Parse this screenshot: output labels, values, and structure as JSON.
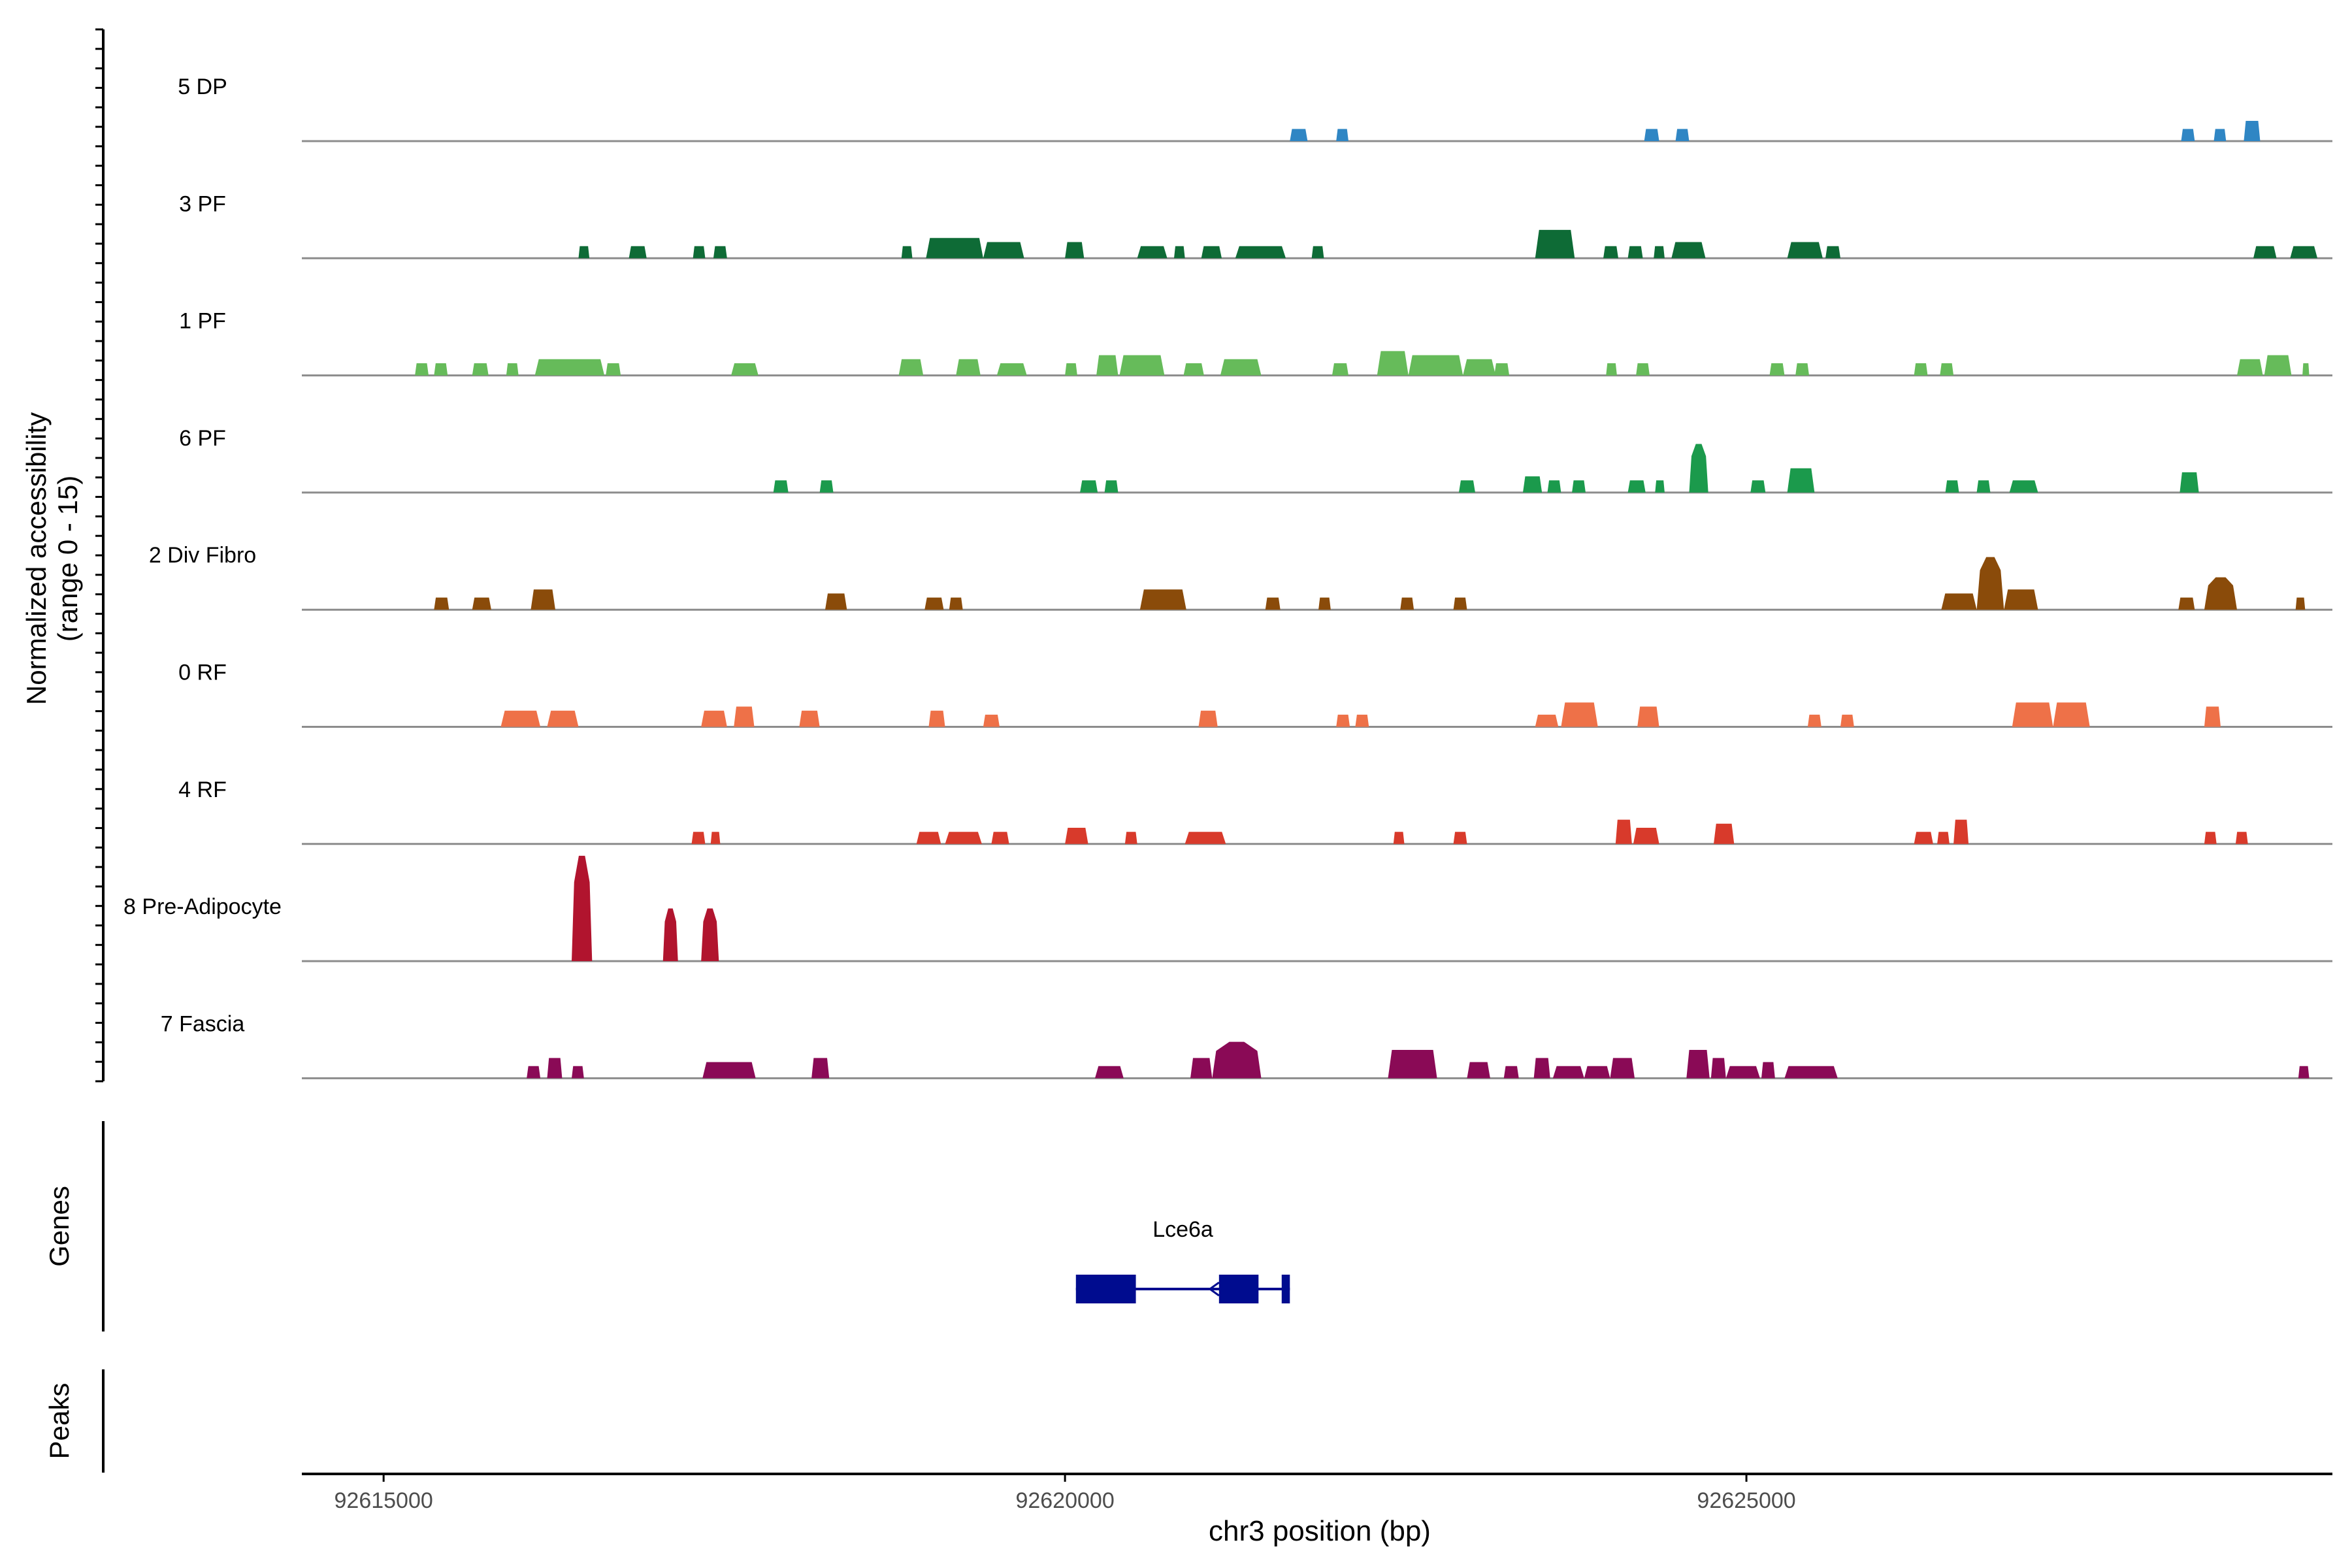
{
  "chart_data": {
    "type": "area",
    "ylabel_line1": "Normalized accessibility",
    "ylabel_line2": "(range 0 - 15)",
    "xlabel": "chr3 position (bp)",
    "xlim": [
      92614400,
      92629300
    ],
    "ylim": [
      0,
      15
    ],
    "x_ticks": [
      92615000,
      92620000,
      92625000
    ],
    "x_tick_labels": [
      "92615000",
      "92620000",
      "92625000"
    ],
    "tracks": [
      {
        "name": "5 DP",
        "color": "#2f86c4",
        "peaks": [
          [
            92621650,
            92621780,
            3
          ],
          [
            92621990,
            92622080,
            3
          ],
          [
            92624250,
            92624360,
            3
          ],
          [
            92624480,
            92624580,
            3
          ],
          [
            92628190,
            92628290,
            3
          ],
          [
            92628430,
            92628520,
            3
          ],
          [
            92628650,
            92628770,
            5
          ]
        ]
      },
      {
        "name": "3 PF",
        "color": "#0e6b36",
        "peaks": [
          [
            92616430,
            92616510,
            3
          ],
          [
            92616800,
            92616930,
            3
          ],
          [
            92617270,
            92617360,
            3
          ],
          [
            92617420,
            92617520,
            3
          ],
          [
            92618800,
            92618880,
            3
          ],
          [
            92618980,
            92619400,
            5
          ],
          [
            92619400,
            92619700,
            4
          ],
          [
            92620000,
            92620140,
            4
          ],
          [
            92620530,
            92620750,
            3
          ],
          [
            92620800,
            92620880,
            3
          ],
          [
            92621000,
            92621150,
            3
          ],
          [
            92621250,
            92621620,
            3
          ],
          [
            92621810,
            92621900,
            3
          ],
          [
            92623450,
            92623740,
            7
          ],
          [
            92623950,
            92624060,
            3
          ],
          [
            92624130,
            92624240,
            3
          ],
          [
            92624320,
            92624400,
            3
          ],
          [
            92624450,
            92624700,
            4
          ],
          [
            92625300,
            92625560,
            4
          ],
          [
            92625580,
            92625690,
            3
          ],
          [
            92628720,
            92628890,
            3
          ],
          [
            92628990,
            92629190,
            3
          ]
        ]
      },
      {
        "name": "1 PF",
        "color": "#66bb5a",
        "peaks": [
          [
            92615230,
            92615330,
            3
          ],
          [
            92615370,
            92615470,
            3
          ],
          [
            92615650,
            92615770,
            3
          ],
          [
            92615900,
            92615990,
            3
          ],
          [
            92616110,
            92616620,
            4
          ],
          [
            92616630,
            92616740,
            3
          ],
          [
            92617550,
            92617750,
            3
          ],
          [
            92618780,
            92618960,
            4
          ],
          [
            92619200,
            92619380,
            4
          ],
          [
            92619500,
            92619720,
            3
          ],
          [
            92620000,
            92620090,
            3
          ],
          [
            92620230,
            92620390,
            5
          ],
          [
            92620400,
            92620730,
            5
          ],
          [
            92620870,
            92621020,
            3
          ],
          [
            92621140,
            92621440,
            4
          ],
          [
            92621960,
            92622080,
            3
          ],
          [
            92622290,
            92622520,
            6
          ],
          [
            92622520,
            92622920,
            5
          ],
          [
            92622920,
            92623160,
            4
          ],
          [
            92623150,
            92623260,
            3
          ],
          [
            92623970,
            92624050,
            3
          ],
          [
            92624190,
            92624290,
            3
          ],
          [
            92625170,
            92625280,
            3
          ],
          [
            92625360,
            92625460,
            3
          ],
          [
            92626230,
            92626330,
            3
          ],
          [
            92626420,
            92626520,
            3
          ],
          [
            92628600,
            92628790,
            4
          ],
          [
            92628800,
            92629000,
            5
          ],
          [
            92629080,
            92629130,
            3
          ]
        ]
      },
      {
        "name": "6 PF",
        "color": "#1b9a4c",
        "peaks": [
          [
            92617860,
            92617970,
            3
          ],
          [
            92618200,
            92618300,
            3
          ],
          [
            92620110,
            92620240,
            3
          ],
          [
            92620290,
            92620390,
            3
          ],
          [
            92622890,
            92623010,
            3
          ],
          [
            92623360,
            92623500,
            4
          ],
          [
            92623540,
            92623640,
            3
          ],
          [
            92623720,
            92623820,
            3
          ],
          [
            92624130,
            92624260,
            3
          ],
          [
            92624330,
            92624400,
            3
          ],
          [
            92624580,
            92624720,
            12
          ],
          [
            92625030,
            92625140,
            3
          ],
          [
            92625300,
            92625500,
            6
          ],
          [
            92626460,
            92626560,
            3
          ],
          [
            92626690,
            92626790,
            3
          ],
          [
            92626930,
            92627140,
            3
          ],
          [
            92628180,
            92628320,
            5
          ]
        ]
      },
      {
        "name": "2 Div Fibro",
        "color": "#8a4b0a",
        "peaks": [
          [
            92615370,
            92615480,
            3
          ],
          [
            92615650,
            92615790,
            3
          ],
          [
            92616080,
            92616260,
            5
          ],
          [
            92618240,
            92618400,
            4
          ],
          [
            92618970,
            92619110,
            3
          ],
          [
            92619150,
            92619250,
            3
          ],
          [
            92620550,
            92620890,
            5
          ],
          [
            92621470,
            92621580,
            3
          ],
          [
            92621860,
            92621950,
            3
          ],
          [
            92622460,
            92622560,
            3
          ],
          [
            92622850,
            92622950,
            3
          ],
          [
            92626430,
            92626690,
            4
          ],
          [
            92626690,
            92626890,
            13
          ],
          [
            92626890,
            92627140,
            5
          ],
          [
            92628170,
            92628290,
            3
          ],
          [
            92628360,
            92628600,
            8
          ],
          [
            92629030,
            92629100,
            3
          ]
        ]
      },
      {
        "name": "0 RF",
        "color": "#ee7148",
        "peaks": [
          [
            92615860,
            92616150,
            4
          ],
          [
            92616200,
            92616430,
            4
          ],
          [
            92617330,
            92617520,
            4
          ],
          [
            92617570,
            92617720,
            5
          ],
          [
            92618050,
            92618200,
            4
          ],
          [
            92619000,
            92619120,
            4
          ],
          [
            92619400,
            92619520,
            3
          ],
          [
            92620980,
            92621120,
            4
          ],
          [
            92621990,
            92622090,
            3
          ],
          [
            92622130,
            92622230,
            3
          ],
          [
            92623450,
            92623620,
            3
          ],
          [
            92623640,
            92623910,
            6
          ],
          [
            92624200,
            92624360,
            5
          ],
          [
            92625450,
            92625550,
            3
          ],
          [
            92625690,
            92625790,
            3
          ],
          [
            92626950,
            92627250,
            6
          ],
          [
            92627250,
            92627520,
            6
          ],
          [
            92628360,
            92628480,
            5
          ]
        ]
      },
      {
        "name": "4 RF",
        "color": "#d83a2b",
        "peaks": [
          [
            92617260,
            92617360,
            3
          ],
          [
            92617400,
            92617470,
            3
          ],
          [
            92618910,
            92619090,
            3
          ],
          [
            92619120,
            92619390,
            3
          ],
          [
            92619460,
            92619590,
            3
          ],
          [
            92620000,
            92620170,
            4
          ],
          [
            92620440,
            92620530,
            3
          ],
          [
            92620880,
            92621180,
            3
          ],
          [
            92622410,
            92622490,
            3
          ],
          [
            92622850,
            92622950,
            3
          ],
          [
            92624040,
            92624160,
            6
          ],
          [
            92624170,
            92624360,
            4
          ],
          [
            92624760,
            92624910,
            5
          ],
          [
            92626230,
            92626370,
            3
          ],
          [
            92626400,
            92626490,
            3
          ],
          [
            92626520,
            92626630,
            6
          ],
          [
            92628360,
            92628450,
            3
          ],
          [
            92628590,
            92628680,
            3
          ]
        ]
      },
      {
        "name": "8 Pre-Adipocyte",
        "color": "#b1142e",
        "peaks": [
          [
            92616380,
            92616530,
            26
          ],
          [
            92617050,
            92617160,
            13
          ],
          [
            92617330,
            92617460,
            13
          ]
        ]
      },
      {
        "name": "7 Fascia",
        "color": "#8a0a56",
        "peaks": [
          [
            92616050,
            92616150,
            3
          ],
          [
            92616200,
            92616310,
            5
          ],
          [
            92616380,
            92616470,
            3
          ],
          [
            92617340,
            92617730,
            4
          ],
          [
            92618140,
            92618270,
            5
          ],
          [
            92620220,
            92620430,
            3
          ],
          [
            92620920,
            92621080,
            5
          ],
          [
            92621080,
            92621440,
            9
          ],
          [
            92622370,
            92622730,
            7
          ],
          [
            92622950,
            92623120,
            4
          ],
          [
            92623220,
            92623330,
            3
          ],
          [
            92623440,
            92623560,
            5
          ],
          [
            92623580,
            92623810,
            3
          ],
          [
            92623810,
            92624000,
            3
          ],
          [
            92624000,
            92624180,
            5
          ],
          [
            92624560,
            92624730,
            7
          ],
          [
            92624740,
            92624850,
            5
          ],
          [
            92624850,
            92625100,
            3
          ],
          [
            92625110,
            92625210,
            4
          ],
          [
            92625280,
            92625670,
            3
          ],
          [
            92629050,
            92629130,
            3
          ]
        ]
      }
    ],
    "gene": {
      "name": "Lce6a",
      "color": "#000c8f",
      "start": 92620080,
      "end": 92621650,
      "exons": [
        [
          92620080,
          92620520
        ],
        [
          92621130,
          92621420
        ],
        [
          92621590,
          92621650
        ]
      ]
    },
    "panel_labels": [
      "Genes",
      "Peaks"
    ]
  }
}
